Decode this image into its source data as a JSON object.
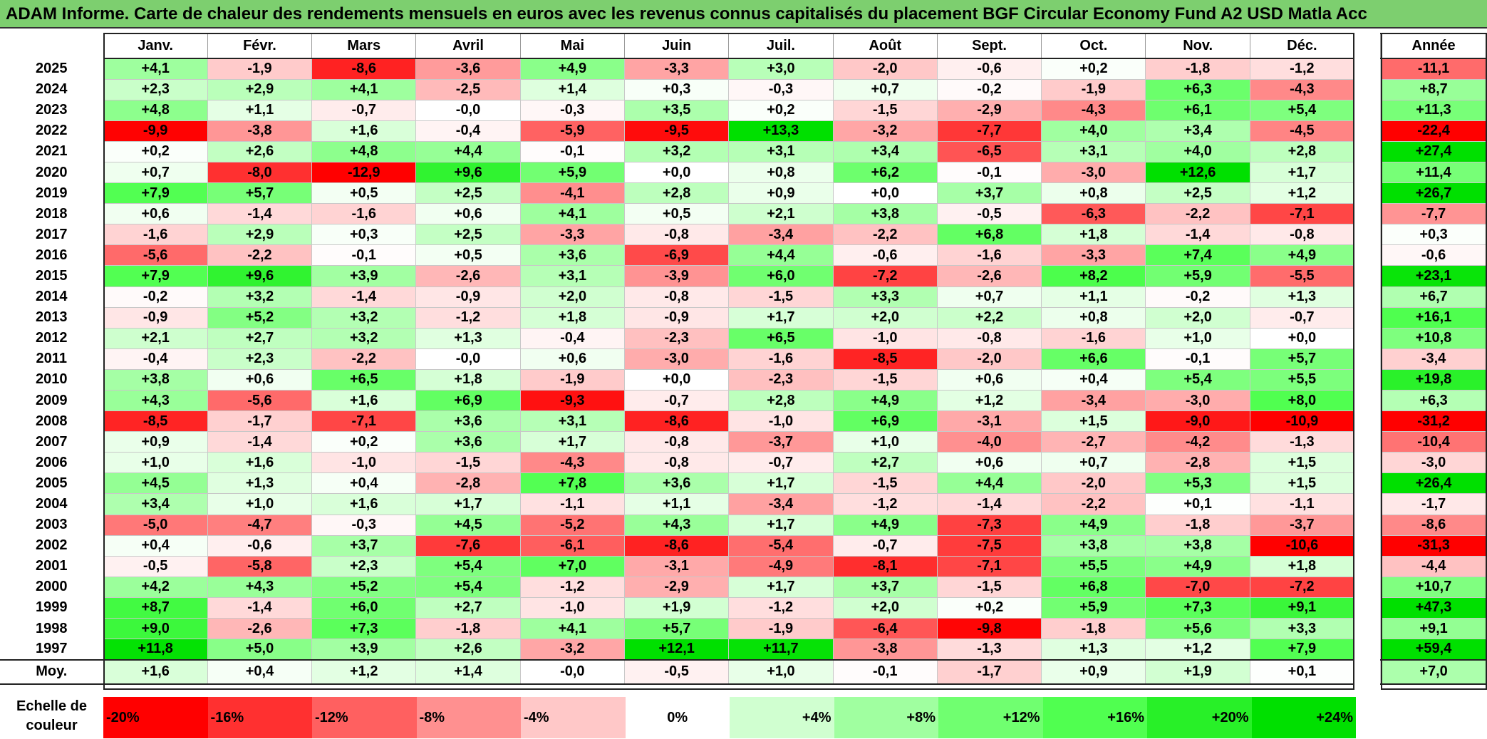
{
  "title": "ADAM Informe. Carte de chaleur des rendements mensuels en euros avec les revenus connus capitalisés du placement BGF Circular Economy Fund A2 USD Matla Acc",
  "chart_data": {
    "type": "heatmap",
    "columns": [
      "Janv.",
      "Févr.",
      "Mars",
      "Avril",
      "Mai",
      "Juin",
      "Juil.",
      "Août",
      "Sept.",
      "Oct.",
      "Nov.",
      "Déc."
    ],
    "year_column": "Année",
    "rows": [
      {
        "year": "2025",
        "months": [
          "+4,1",
          "-1,9",
          "-8,6",
          "-3,6",
          "+4,9",
          "-3,3",
          "+3,0",
          "-2,0",
          "-0,6",
          "+0,2",
          "-1,8",
          "-1,2"
        ],
        "annual": "-11,1"
      },
      {
        "year": "2024",
        "months": [
          "+2,3",
          "+2,9",
          "+4,1",
          "-2,5",
          "+1,4",
          "+0,3",
          "-0,3",
          "+0,7",
          "-0,2",
          "-1,9",
          "+6,3",
          "-4,3"
        ],
        "annual": "+8,7"
      },
      {
        "year": "2023",
        "months": [
          "+4,8",
          "+1,1",
          "-0,7",
          "-0,0",
          "-0,3",
          "+3,5",
          "+0,2",
          "-1,5",
          "-2,9",
          "-4,3",
          "+6,1",
          "+5,4"
        ],
        "annual": "+11,3"
      },
      {
        "year": "2022",
        "months": [
          "-9,9",
          "-3,8",
          "+1,6",
          "-0,4",
          "-5,9",
          "-9,5",
          "+13,3",
          "-3,2",
          "-7,7",
          "+4,0",
          "+3,4",
          "-4,5"
        ],
        "annual": "-22,4"
      },
      {
        "year": "2021",
        "months": [
          "+0,2",
          "+2,6",
          "+4,8",
          "+4,4",
          "-0,1",
          "+3,2",
          "+3,1",
          "+3,4",
          "-6,5",
          "+3,1",
          "+4,0",
          "+2,8"
        ],
        "annual": "+27,4"
      },
      {
        "year": "2020",
        "months": [
          "+0,7",
          "-8,0",
          "-12,9",
          "+9,6",
          "+5,9",
          "+0,0",
          "+0,8",
          "+6,2",
          "-0,1",
          "-3,0",
          "+12,6",
          "+1,7"
        ],
        "annual": "+11,4"
      },
      {
        "year": "2019",
        "months": [
          "+7,9",
          "+5,7",
          "+0,5",
          "+2,5",
          "-4,1",
          "+2,8",
          "+0,9",
          "+0,0",
          "+3,7",
          "+0,8",
          "+2,5",
          "+1,2"
        ],
        "annual": "+26,7"
      },
      {
        "year": "2018",
        "months": [
          "+0,6",
          "-1,4",
          "-1,6",
          "+0,6",
          "+4,1",
          "+0,5",
          "+2,1",
          "+3,8",
          "-0,5",
          "-6,3",
          "-2,2",
          "-7,1"
        ],
        "annual": "-7,7"
      },
      {
        "year": "2017",
        "months": [
          "-1,6",
          "+2,9",
          "+0,3",
          "+2,5",
          "-3,3",
          "-0,8",
          "-3,4",
          "-2,2",
          "+6,8",
          "+1,8",
          "-1,4",
          "-0,8"
        ],
        "annual": "+0,3"
      },
      {
        "year": "2016",
        "months": [
          "-5,6",
          "-2,2",
          "-0,1",
          "+0,5",
          "+3,6",
          "-6,9",
          "+4,4",
          "-0,6",
          "-1,6",
          "-3,3",
          "+7,4",
          "+4,9"
        ],
        "annual": "-0,6"
      },
      {
        "year": "2015",
        "months": [
          "+7,9",
          "+9,6",
          "+3,9",
          "-2,6",
          "+3,1",
          "-3,9",
          "+6,0",
          "-7,2",
          "-2,6",
          "+8,2",
          "+5,9",
          "-5,5"
        ],
        "annual": "+23,1"
      },
      {
        "year": "2014",
        "months": [
          "-0,2",
          "+3,2",
          "-1,4",
          "-0,9",
          "+2,0",
          "-0,8",
          "-1,5",
          "+3,3",
          "+0,7",
          "+1,1",
          "-0,2",
          "+1,3"
        ],
        "annual": "+6,7"
      },
      {
        "year": "2013",
        "months": [
          "-0,9",
          "+5,2",
          "+3,2",
          "-1,2",
          "+1,8",
          "-0,9",
          "+1,7",
          "+2,0",
          "+2,2",
          "+0,8",
          "+2,0",
          "-0,7"
        ],
        "annual": "+16,1"
      },
      {
        "year": "2012",
        "months": [
          "+2,1",
          "+2,7",
          "+3,2",
          "+1,3",
          "-0,4",
          "-2,3",
          "+6,5",
          "-1,0",
          "-0,8",
          "-1,6",
          "+1,0",
          "+0,0"
        ],
        "annual": "+10,8"
      },
      {
        "year": "2011",
        "months": [
          "-0,4",
          "+2,3",
          "-2,2",
          "-0,0",
          "+0,6",
          "-3,0",
          "-1,6",
          "-8,5",
          "-2,0",
          "+6,6",
          "-0,1",
          "+5,7"
        ],
        "annual": "-3,4"
      },
      {
        "year": "2010",
        "months": [
          "+3,8",
          "+0,6",
          "+6,5",
          "+1,8",
          "-1,9",
          "+0,0",
          "-2,3",
          "-1,5",
          "+0,6",
          "+0,4",
          "+5,4",
          "+5,5"
        ],
        "annual": "+19,8"
      },
      {
        "year": "2009",
        "months": [
          "+4,3",
          "-5,6",
          "+1,6",
          "+6,9",
          "-9,3",
          "-0,7",
          "+2,8",
          "+4,9",
          "+1,2",
          "-3,4",
          "-3,0",
          "+8,0"
        ],
        "annual": "+6,3"
      },
      {
        "year": "2008",
        "months": [
          "-8,5",
          "-1,7",
          "-7,1",
          "+3,6",
          "+3,1",
          "-8,6",
          "-1,0",
          "+6,9",
          "-3,1",
          "+1,5",
          "-9,0",
          "-10,9"
        ],
        "annual": "-31,2"
      },
      {
        "year": "2007",
        "months": [
          "+0,9",
          "-1,4",
          "+0,2",
          "+3,6",
          "+1,7",
          "-0,8",
          "-3,7",
          "+1,0",
          "-4,0",
          "-2,7",
          "-4,2",
          "-1,3"
        ],
        "annual": "-10,4"
      },
      {
        "year": "2006",
        "months": [
          "+1,0",
          "+1,6",
          "-1,0",
          "-1,5",
          "-4,3",
          "-0,8",
          "-0,7",
          "+2,7",
          "+0,6",
          "+0,7",
          "-2,8",
          "+1,5"
        ],
        "annual": "-3,0"
      },
      {
        "year": "2005",
        "months": [
          "+4,5",
          "+1,3",
          "+0,4",
          "-2,8",
          "+7,8",
          "+3,6",
          "+1,7",
          "-1,5",
          "+4,4",
          "-2,0",
          "+5,3",
          "+1,5"
        ],
        "annual": "+26,4"
      },
      {
        "year": "2004",
        "months": [
          "+3,4",
          "+1,0",
          "+1,6",
          "+1,7",
          "-1,1",
          "+1,1",
          "-3,4",
          "-1,2",
          "-1,4",
          "-2,2",
          "+0,1",
          "-1,1"
        ],
        "annual": "-1,7"
      },
      {
        "year": "2003",
        "months": [
          "-5,0",
          "-4,7",
          "-0,3",
          "+4,5",
          "-5,2",
          "+4,3",
          "+1,7",
          "+4,9",
          "-7,3",
          "+4,9",
          "-1,8",
          "-3,7"
        ],
        "annual": "-8,6"
      },
      {
        "year": "2002",
        "months": [
          "+0,4",
          "-0,6",
          "+3,7",
          "-7,6",
          "-6,1",
          "-8,6",
          "-5,4",
          "-0,7",
          "-7,5",
          "+3,8",
          "+3,8",
          "-10,6"
        ],
        "annual": "-31,3"
      },
      {
        "year": "2001",
        "months": [
          "-0,5",
          "-5,8",
          "+2,3",
          "+5,4",
          "+7,0",
          "-3,1",
          "-4,9",
          "-8,1",
          "-7,1",
          "+5,5",
          "+4,9",
          "+1,8"
        ],
        "annual": "-4,4"
      },
      {
        "year": "2000",
        "months": [
          "+4,2",
          "+4,3",
          "+5,2",
          "+5,4",
          "-1,2",
          "-2,9",
          "+1,7",
          "+3,7",
          "-1,5",
          "+6,8",
          "-7,0",
          "-7,2"
        ],
        "annual": "+10,7"
      },
      {
        "year": "1999",
        "months": [
          "+8,7",
          "-1,4",
          "+6,0",
          "+2,7",
          "-1,0",
          "+1,9",
          "-1,2",
          "+2,0",
          "+0,2",
          "+5,9",
          "+7,3",
          "+9,1"
        ],
        "annual": "+47,3"
      },
      {
        "year": "1998",
        "months": [
          "+9,0",
          "-2,6",
          "+7,3",
          "-1,8",
          "+4,1",
          "+5,7",
          "-1,9",
          "-6,4",
          "-9,8",
          "-1,8",
          "+5,6",
          "+3,3"
        ],
        "annual": "+9,1"
      },
      {
        "year": "1997",
        "months": [
          "+11,8",
          "+5,0",
          "+3,9",
          "+2,6",
          "-3,2",
          "+12,1",
          "+11,7",
          "-3,8",
          "-1,3",
          "+1,3",
          "+1,2",
          "+7,9"
        ],
        "annual": "+59,4"
      }
    ],
    "average": {
      "label": "Moy.",
      "months": [
        "+1,6",
        "+0,4",
        "+1,2",
        "+1,4",
        "-0,0",
        "-0,5",
        "+1,0",
        "-0,1",
        "-1,7",
        "+0,9",
        "+1,9",
        "+0,1"
      ],
      "annual": "+7,0"
    },
    "color_scale": {
      "label": "Echelle de couleur",
      "stops": [
        {
          "text": "-20%",
          "value": -20,
          "color": "#ff0000"
        },
        {
          "text": "-16%",
          "value": -16,
          "color": "#ff3030"
        },
        {
          "text": "-12%",
          "value": -12,
          "color": "#ff6060"
        },
        {
          "text": "-8%",
          "value": -8,
          "color": "#ff9090"
        },
        {
          "text": "-4%",
          "value": -4,
          "color": "#ffc8c8"
        },
        {
          "text": "0%",
          "value": 0,
          "color": "#ffffff"
        },
        {
          "text": "+4%",
          "value": 4,
          "color": "#d0ffd0"
        },
        {
          "text": "+8%",
          "value": 8,
          "color": "#a0ffa0"
        },
        {
          "text": "+12%",
          "value": 12,
          "color": "#70ff70"
        },
        {
          "text": "+16%",
          "value": 16,
          "color": "#50ff50"
        },
        {
          "text": "+20%",
          "value": 20,
          "color": "#28f028"
        },
        {
          "text": "+24%",
          "value": 24,
          "color": "#00e000"
        }
      ]
    }
  }
}
